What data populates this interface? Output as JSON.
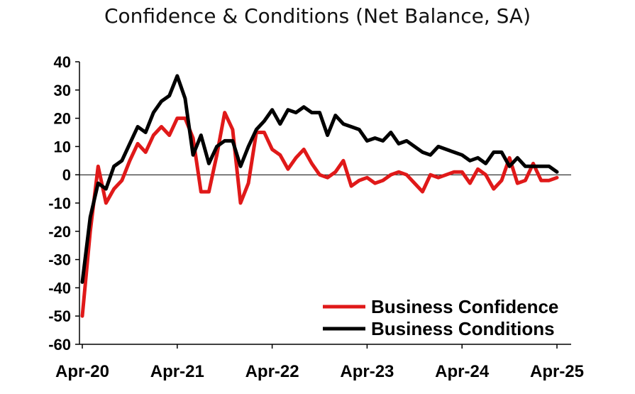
{
  "chart_data": {
    "type": "line",
    "title": "Confidence & Conditions (Net Balance, SA)",
    "xlabel": "",
    "ylabel": "",
    "ylim": [
      -60,
      40
    ],
    "yticks": [
      40,
      30,
      20,
      10,
      0,
      -10,
      -20,
      -30,
      -40,
      -50,
      -60
    ],
    "xtick_labels": [
      "Apr-20",
      "Apr-21",
      "Apr-22",
      "Apr-23",
      "Apr-24",
      "Apr-25"
    ],
    "x_start": "Apr-20",
    "x_end": "Apr-25",
    "periods_per_year": 12,
    "legend_position": "bottom-right",
    "colors": {
      "confidence": "#e01919",
      "conditions": "#000000"
    },
    "series": [
      {
        "name": "Business Confidence",
        "key": "confidence",
        "values": [
          -50,
          -20,
          3,
          -10,
          -5,
          -2,
          5,
          11,
          8,
          14,
          17,
          14,
          20,
          20,
          13,
          -6,
          -6,
          7,
          22,
          16,
          -10,
          -3,
          15,
          15,
          9,
          7,
          2,
          6,
          9,
          4,
          0,
          -1,
          1,
          5,
          -4,
          -2,
          -1,
          -3,
          -2,
          0,
          1,
          0,
          -3,
          -6,
          0,
          -1,
          0,
          1,
          1,
          -3,
          2,
          0,
          -5,
          -2,
          6,
          -3,
          -2,
          4,
          -2,
          -2,
          -1
        ]
      },
      {
        "name": "Business Conditions",
        "key": "conditions",
        "values": [
          -38,
          -15,
          -3,
          -5,
          3,
          5,
          11,
          17,
          15,
          22,
          26,
          28,
          35,
          27,
          7,
          14,
          4,
          10,
          12,
          12,
          3,
          10,
          16,
          19,
          23,
          18,
          23,
          22,
          24,
          22,
          22,
          14,
          21,
          18,
          17,
          16,
          12,
          13,
          12,
          15,
          11,
          12,
          10,
          8,
          7,
          10,
          9,
          8,
          7,
          5,
          6,
          4,
          8,
          8,
          3,
          6,
          3,
          3,
          3,
          3,
          1
        ]
      }
    ]
  }
}
